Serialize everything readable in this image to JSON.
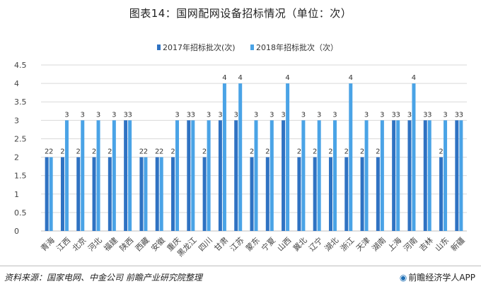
{
  "title": "图表14：国网配网设备招标情况（单位：次）",
  "footer": {
    "source": "资料来源：国家电网、中金公司 前瞻产业研究院整理",
    "brand": "前瞻经济学人APP",
    "brand_icon": "brand-logo-icon"
  },
  "colors": {
    "series_2017": "#2f72c2",
    "series_2018": "#4aa3e6",
    "gridline": "#d9d9d9",
    "axis": "#bfbfbf"
  },
  "chart_data": {
    "type": "bar",
    "title": "图表14：国网配网设备招标情况（单位：次）",
    "xlabel": "",
    "ylabel": "",
    "ylim": [
      0,
      4.5
    ],
    "yticks": [
      "0",
      "0.5",
      "1",
      "1.5",
      "2",
      "2.5",
      "3",
      "3.5",
      "4",
      "4.5"
    ],
    "grid": true,
    "legend_position": "top-center",
    "categories": [
      "青海",
      "江西",
      "北京",
      "河北",
      "福建",
      "陕西",
      "西藏",
      "安徽",
      "重庆",
      "黑龙江",
      "四川",
      "甘肃",
      "江苏",
      "蒙东",
      "宁夏",
      "山西",
      "冀北",
      "辽宁",
      "湖北",
      "浙江",
      "天津",
      "湖南",
      "上海",
      "河南",
      "吉林",
      "山东",
      "新疆"
    ],
    "series": [
      {
        "name": "2017年招标批次(次)",
        "values": [
          2,
          2,
          2,
          2,
          2,
          3,
          2,
          2,
          2,
          3,
          2,
          3,
          3,
          2,
          2,
          3,
          2,
          2,
          2,
          2,
          2,
          2,
          3,
          3,
          3,
          2,
          3
        ]
      },
      {
        "name": "2018年招标批次（次）",
        "values": [
          2,
          3,
          3,
          3,
          3,
          3,
          2,
          2,
          3,
          3,
          3,
          4,
          4,
          3,
          3,
          4,
          3,
          3,
          3,
          4,
          3,
          3,
          3,
          4,
          3,
          3,
          3
        ]
      }
    ]
  }
}
